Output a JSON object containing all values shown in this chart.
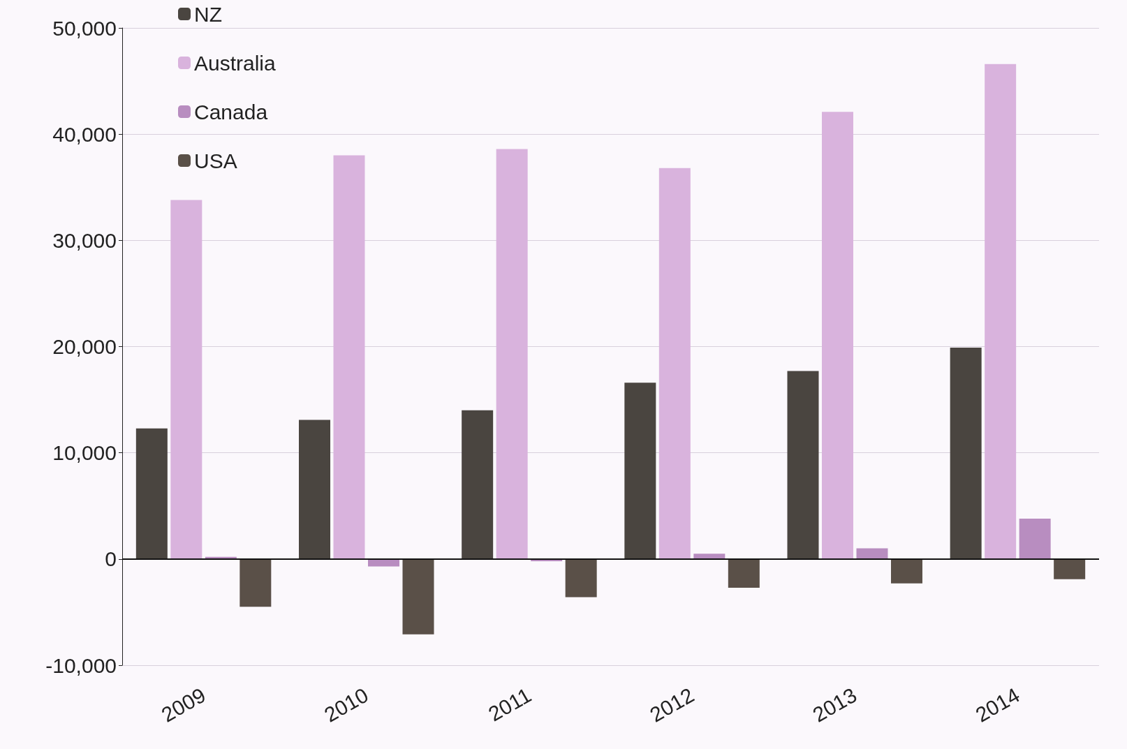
{
  "chart_data": {
    "type": "bar",
    "categories": [
      "2009",
      "2010",
      "2011",
      "2012",
      "2013",
      "2014"
    ],
    "series": [
      {
        "name": "NZ",
        "color": "#4a4540",
        "values": [
          12300,
          13100,
          14000,
          16600,
          17700,
          19900
        ]
      },
      {
        "name": "Australia",
        "color": "#d9b3dd",
        "values": [
          33800,
          38000,
          38600,
          36800,
          42100,
          46600
        ]
      },
      {
        "name": "Canada",
        "color": "#b88dc0",
        "values": [
          200,
          -700,
          -200,
          500,
          1000,
          3800
        ]
      },
      {
        "name": "USA",
        "color": "#5a5048",
        "values": [
          -4500,
          -7100,
          -3600,
          -2700,
          -2300,
          -1900
        ]
      }
    ],
    "ylim": [
      -10000,
      50000
    ],
    "yticks": [
      {
        "value": -10000,
        "label": "-10,000"
      },
      {
        "value": 0,
        "label": "0"
      },
      {
        "value": 10000,
        "label": "10,000"
      },
      {
        "value": 20000,
        "label": "20,000"
      },
      {
        "value": 30000,
        "label": "30,000"
      },
      {
        "value": 40000,
        "label": "40,000"
      },
      {
        "value": 50000,
        "label": "50,000"
      }
    ],
    "grid": "y",
    "legend": "top left"
  }
}
